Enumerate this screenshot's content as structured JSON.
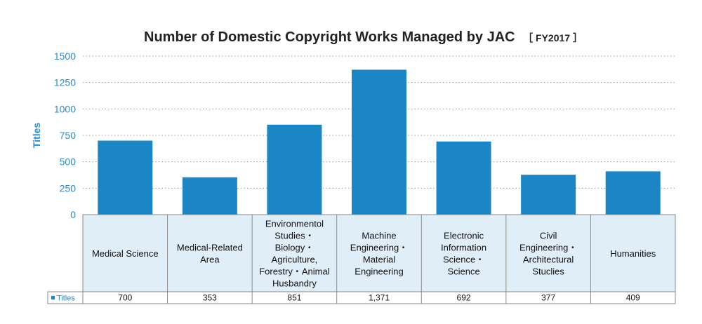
{
  "chart_data": {
    "type": "bar",
    "title": "Number of Domestic Copyright Works Managed by JAC",
    "title_suffix": "［ FY2017 ］",
    "ylabel": "Titles",
    "ylim": [
      0,
      1500
    ],
    "yticks": [
      "0",
      "250",
      "500",
      "750",
      "1000",
      "1250",
      "1500"
    ],
    "grid": true,
    "categories": [
      [
        "Medical Science"
      ],
      [
        "Medical-Related",
        "Area"
      ],
      [
        "Environmentol",
        "Studies・",
        "Biology・",
        "Agriculture,",
        "Forestry・Animal",
        "Husbandry"
      ],
      [
        "Machine",
        "Engineering・",
        "Material",
        "Engineering"
      ],
      [
        "Electronic",
        "Information",
        "Science・",
        "Science"
      ],
      [
        "Civil",
        "Engineering・",
        "Architectural",
        "Stuclies"
      ],
      [
        "Humanities"
      ]
    ],
    "series": [
      {
        "name": "Titles",
        "values": [
          700,
          353,
          851,
          1371,
          692,
          377,
          409
        ],
        "value_labels": [
          "700",
          "353",
          "851",
          "1,371",
          "692",
          "377",
          "409"
        ]
      }
    ],
    "colors": {
      "bar": "#1a86c5",
      "axis_text": "#2a8ccb",
      "table_fill": "#e0eff7",
      "table_border": "#8a8a8a",
      "grid": "#9a9a9a"
    }
  }
}
